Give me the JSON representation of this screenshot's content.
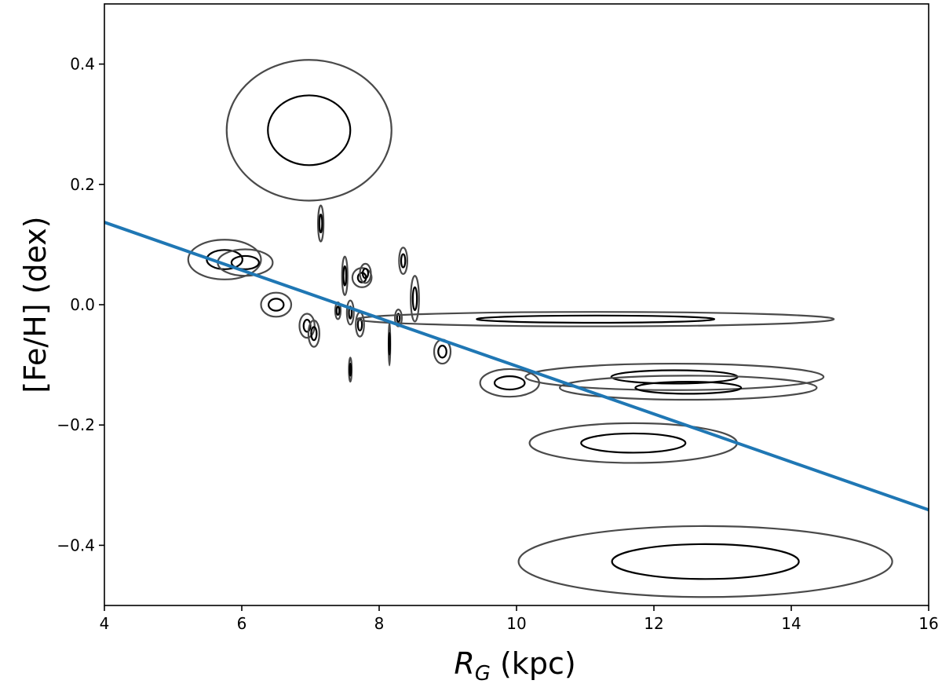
{
  "chart_data": {
    "type": "scatter",
    "title": "",
    "xlabel_var": "R",
    "xlabel_sub": "G",
    "xlabel_unit": " (kpc)",
    "ylabel": "[Fe/H] (dex)",
    "xlim": [
      4,
      16
    ],
    "ylim": [
      -0.5,
      0.5
    ],
    "xticks": [
      4,
      6,
      8,
      10,
      12,
      14,
      16
    ],
    "xtick_labels": [
      "4",
      "6",
      "8",
      "10",
      "12",
      "14",
      "16"
    ],
    "yticks": [
      -0.4,
      -0.2,
      0.0,
      0.2,
      0.4
    ],
    "ytick_labels": [
      "−0.4",
      "−0.2",
      "0.0",
      "0.2",
      "0.4"
    ],
    "fit_line": {
      "x": [
        4,
        16
      ],
      "y": [
        0.137,
        -0.341
      ],
      "color": "#1f77b4"
    },
    "ellipse_colors": {
      "inner": "#000000",
      "outer": "#4a4a4a"
    },
    "ellipses": [
      {
        "x": 6.98,
        "y": 0.29,
        "sx1": 0.6,
        "sy1": 0.058,
        "sx2": 1.2,
        "sy2": 0.117
      },
      {
        "x": 7.15,
        "y": 0.135,
        "sx1": 0.02,
        "sy1": 0.015,
        "sx2": 0.04,
        "sy2": 0.03
      },
      {
        "x": 5.75,
        "y": 0.075,
        "sx1": 0.26,
        "sy1": 0.016,
        "sx2": 0.53,
        "sy2": 0.033
      },
      {
        "x": 6.05,
        "y": 0.07,
        "sx1": 0.2,
        "sy1": 0.011,
        "sx2": 0.4,
        "sy2": 0.022
      },
      {
        "x": 6.5,
        "y": 0.0,
        "sx1": 0.11,
        "sy1": 0.01,
        "sx2": 0.22,
        "sy2": 0.02
      },
      {
        "x": 6.95,
        "y": -0.035,
        "sx1": 0.05,
        "sy1": 0.01,
        "sx2": 0.11,
        "sy2": 0.02
      },
      {
        "x": 7.05,
        "y": -0.048,
        "sx1": 0.04,
        "sy1": 0.011,
        "sx2": 0.08,
        "sy2": 0.022
      },
      {
        "x": 7.4,
        "y": -0.01,
        "sx1": 0.02,
        "sy1": 0.007,
        "sx2": 0.04,
        "sy2": 0.014
      },
      {
        "x": 7.5,
        "y": 0.048,
        "sx1": 0.02,
        "sy1": 0.016,
        "sx2": 0.04,
        "sy2": 0.032
      },
      {
        "x": 7.58,
        "y": -0.013,
        "sx1": 0.02,
        "sy1": 0.01,
        "sx2": 0.05,
        "sy2": 0.02
      },
      {
        "x": 7.58,
        "y": -0.108,
        "sx1": 0.01,
        "sy1": 0.01,
        "sx2": 0.02,
        "sy2": 0.02
      },
      {
        "x": 7.72,
        "y": -0.033,
        "sx1": 0.03,
        "sy1": 0.01,
        "sx2": 0.06,
        "sy2": 0.02
      },
      {
        "x": 7.75,
        "y": 0.045,
        "sx1": 0.06,
        "sy1": 0.008,
        "sx2": 0.14,
        "sy2": 0.016
      },
      {
        "x": 7.8,
        "y": 0.052,
        "sx1": 0.04,
        "sy1": 0.008,
        "sx2": 0.08,
        "sy2": 0.016
      },
      {
        "x": 8.15,
        "y": -0.065,
        "sx1": 0.006,
        "sy1": 0.018,
        "sx2": 0.012,
        "sy2": 0.036
      },
      {
        "x": 8.28,
        "y": -0.022,
        "sx1": 0.02,
        "sy1": 0.007,
        "sx2": 0.05,
        "sy2": 0.014
      },
      {
        "x": 8.35,
        "y": 0.073,
        "sx1": 0.03,
        "sy1": 0.011,
        "sx2": 0.06,
        "sy2": 0.022
      },
      {
        "x": 8.52,
        "y": 0.01,
        "sx1": 0.03,
        "sy1": 0.019,
        "sx2": 0.06,
        "sy2": 0.038
      },
      {
        "x": 8.92,
        "y": -0.078,
        "sx1": 0.06,
        "sy1": 0.01,
        "sx2": 0.12,
        "sy2": 0.02
      },
      {
        "x": 9.9,
        "y": -0.13,
        "sx1": 0.22,
        "sy1": 0.011,
        "sx2": 0.43,
        "sy2": 0.023
      },
      {
        "x": 11.15,
        "y": -0.024,
        "sx1": 1.73,
        "sy1": 0.006,
        "sx2": 3.47,
        "sy2": 0.012
      },
      {
        "x": 12.3,
        "y": -0.12,
        "sx1": 0.92,
        "sy1": 0.011,
        "sx2": 2.17,
        "sy2": 0.022
      },
      {
        "x": 12.5,
        "y": -0.138,
        "sx1": 0.77,
        "sy1": 0.01,
        "sx2": 1.87,
        "sy2": 0.02
      },
      {
        "x": 11.7,
        "y": -0.23,
        "sx1": 0.76,
        "sy1": 0.016,
        "sx2": 1.51,
        "sy2": 0.033
      },
      {
        "x": 12.75,
        "y": -0.427,
        "sx1": 1.36,
        "sy1": 0.029,
        "sx2": 2.72,
        "sy2": 0.059
      }
    ]
  }
}
